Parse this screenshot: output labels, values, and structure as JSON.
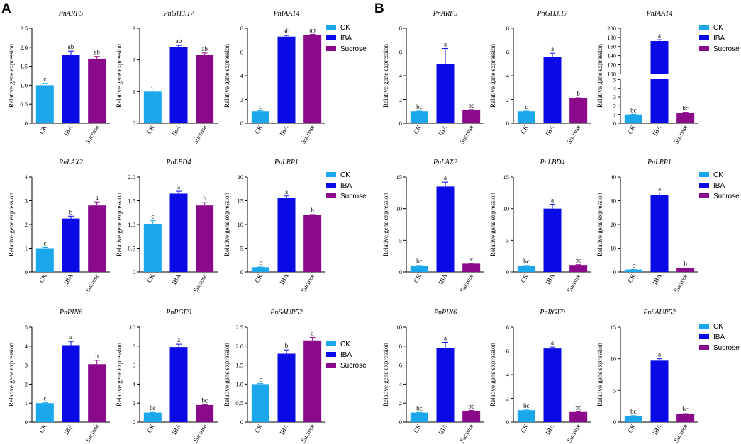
{
  "panels": {
    "a": "A",
    "b": "B"
  },
  "axis_ylabel": "Relative gene expression",
  "categories": [
    "CK",
    "IBA",
    "Sucrose"
  ],
  "colors": {
    "CK": "#1aa7ec",
    "IBA": "#0a0ae6",
    "Sucrose": "#8b0a8b"
  },
  "legend": [
    {
      "label": "CK",
      "color": "#1aa7ec"
    },
    {
      "label": "IBA",
      "color": "#0a0ae6"
    },
    {
      "label": "Sucrose",
      "color": "#8b0a8b"
    }
  ],
  "chart_data": [
    {
      "panel": "A",
      "type": "bar",
      "title": "PnARF5",
      "categories": [
        "CK",
        "IBA",
        "Sucrose"
      ],
      "values": [
        1.0,
        1.8,
        1.7
      ],
      "errors": [
        0.05,
        0.1,
        0.06
      ],
      "letters": [
        "c",
        "ab",
        "ab"
      ],
      "ylim": [
        0,
        2.5
      ],
      "yticks": [
        "0",
        "0.5",
        "1.0",
        "1.5",
        "2.0",
        "2.5"
      ],
      "ylabel": "Relative gene expression"
    },
    {
      "panel": "A",
      "type": "bar",
      "title": "PnGH3.17",
      "categories": [
        "CK",
        "IBA",
        "Sucrose"
      ],
      "values": [
        1.0,
        2.4,
        2.15
      ],
      "errors": [
        0.02,
        0.06,
        0.07
      ],
      "letters": [
        "c",
        "ab",
        "ab"
      ],
      "ylim": [
        0,
        3
      ],
      "yticks": [
        "0",
        "1",
        "2",
        "3"
      ],
      "ylabel": "Relative gene expression"
    },
    {
      "panel": "A",
      "type": "bar",
      "title": "PnIAA14",
      "categories": [
        "CK",
        "IBA",
        "Sucrose"
      ],
      "values": [
        1.0,
        7.3,
        7.45
      ],
      "errors": [
        0.05,
        0.1,
        0.05
      ],
      "letters": [
        "c",
        "ab",
        "ab"
      ],
      "ylim": [
        0,
        8
      ],
      "yticks": [
        "0",
        "2",
        "4",
        "6",
        "8"
      ],
      "ylabel": "Relative gene expression"
    },
    {
      "panel": "A",
      "type": "bar",
      "title": "PnLAX2",
      "categories": [
        "CK",
        "IBA",
        "Sucrose"
      ],
      "values": [
        1.0,
        2.25,
        2.8
      ],
      "errors": [
        0.03,
        0.1,
        0.15
      ],
      "letters": [
        "c",
        "b",
        "a"
      ],
      "ylim": [
        0,
        4
      ],
      "yticks": [
        "0",
        "1",
        "2",
        "3",
        "4"
      ],
      "ylabel": "Relative gene expression"
    },
    {
      "panel": "A",
      "type": "bar",
      "title": "PnLBD4",
      "categories": [
        "CK",
        "IBA",
        "Sucrose"
      ],
      "values": [
        1.0,
        1.65,
        1.4
      ],
      "errors": [
        0.08,
        0.05,
        0.06
      ],
      "letters": [
        "c",
        "a",
        "b"
      ],
      "ylim": [
        0,
        2.0
      ],
      "yticks": [
        "0",
        "0.5",
        "1.0",
        "1.5",
        "2.0"
      ],
      "ylabel": "Relative gene expression"
    },
    {
      "panel": "A",
      "type": "bar",
      "title": "PnLRP1",
      "categories": [
        "CK",
        "IBA",
        "Sucrose"
      ],
      "values": [
        1.0,
        15.6,
        12.0
      ],
      "errors": [
        0.05,
        0.4,
        0.1
      ],
      "letters": [
        "c",
        "a",
        "b"
      ],
      "ylim": [
        0,
        20
      ],
      "yticks": [
        "0",
        "5",
        "10",
        "15",
        "20"
      ],
      "ylabel": "Relative gene expression"
    },
    {
      "panel": "A",
      "type": "bar",
      "title": "PnPIN6",
      "categories": [
        "CK",
        "IBA",
        "Sucrose"
      ],
      "values": [
        1.0,
        4.05,
        3.05
      ],
      "errors": [
        0.02,
        0.2,
        0.2
      ],
      "letters": [
        "c",
        "a",
        "b"
      ],
      "ylim": [
        0,
        5
      ],
      "yticks": [
        "0",
        "1",
        "2",
        "3",
        "4",
        "5"
      ],
      "ylabel": "Relative gene expression"
    },
    {
      "panel": "A",
      "type": "bar",
      "title": "PnRGF9",
      "categories": [
        "CK",
        "IBA",
        "Sucrose"
      ],
      "values": [
        1.0,
        7.9,
        1.8
      ],
      "errors": [
        0.03,
        0.3,
        0.04
      ],
      "letters": [
        "bc",
        "a",
        "bc"
      ],
      "ylim": [
        0,
        10
      ],
      "yticks": [
        "0",
        "2",
        "4",
        "6",
        "8",
        "10"
      ],
      "ylabel": "Relative gene expression"
    },
    {
      "panel": "A",
      "type": "bar",
      "title": "PnSAUR52",
      "categories": [
        "CK",
        "IBA",
        "Sucrose"
      ],
      "values": [
        1.0,
        1.8,
        2.15
      ],
      "errors": [
        0.02,
        0.1,
        0.08
      ],
      "letters": [
        "c",
        "b",
        "a"
      ],
      "ylim": [
        0,
        2.5
      ],
      "yticks": [
        "0",
        "0.5",
        "1.0",
        "1.5",
        "2.0",
        "2.5"
      ],
      "ylabel": "Relative gene expression"
    },
    {
      "panel": "B",
      "type": "bar",
      "title": "PnARF5",
      "categories": [
        "CK",
        "IBA",
        "Sucrose"
      ],
      "values": [
        1.0,
        5.0,
        1.1
      ],
      "errors": [
        0.02,
        1.3,
        0.04
      ],
      "letters": [
        "bc",
        "a",
        "bc"
      ],
      "ylim": [
        0,
        8
      ],
      "yticks": [
        "0",
        "2",
        "4",
        "6",
        "8"
      ],
      "ylabel": "Relative gene expression"
    },
    {
      "panel": "B",
      "type": "bar",
      "title": "PnGH3.17",
      "categories": [
        "CK",
        "IBA",
        "Sucrose"
      ],
      "values": [
        1.0,
        5.6,
        2.1
      ],
      "errors": [
        0.02,
        0.3,
        0.05
      ],
      "letters": [
        "c",
        "a",
        "b"
      ],
      "ylim": [
        0,
        8
      ],
      "yticks": [
        "0",
        "2",
        "4",
        "6",
        "8"
      ],
      "ylabel": "Relative gene expression"
    },
    {
      "panel": "B",
      "type": "bar",
      "title": "PnIAA14",
      "categories": [
        "CK",
        "IBA",
        "Sucrose"
      ],
      "values": [
        1.0,
        172,
        1.2
      ],
      "errors": [
        0.02,
        3,
        0.05
      ],
      "letters": [
        "bc",
        "a",
        "bc"
      ],
      "ylim": [
        0,
        200
      ],
      "yticks": [
        "0",
        "1",
        "2",
        "3",
        "4",
        "5",
        "100",
        "120",
        "140",
        "160",
        "180",
        "200"
      ],
      "axis_break": [
        5,
        100
      ],
      "ylabel": "Relative gene expression"
    },
    {
      "panel": "B",
      "type": "bar",
      "title": "PnLAX2",
      "categories": [
        "CK",
        "IBA",
        "Sucrose"
      ],
      "values": [
        1.0,
        13.5,
        1.3
      ],
      "errors": [
        0.02,
        0.7,
        0.06
      ],
      "letters": [
        "bc",
        "a",
        "bc"
      ],
      "ylim": [
        0,
        15
      ],
      "yticks": [
        "0",
        "5",
        "10",
        "15"
      ],
      "ylabel": "Relative gene expression"
    },
    {
      "panel": "B",
      "type": "bar",
      "title": "PnLBD4",
      "categories": [
        "CK",
        "IBA",
        "Sucrose"
      ],
      "values": [
        1.0,
        10.0,
        1.1
      ],
      "errors": [
        0.02,
        0.7,
        0.05
      ],
      "letters": [
        "bc",
        "a",
        "bc"
      ],
      "ylim": [
        0,
        15
      ],
      "yticks": [
        "0",
        "5",
        "10",
        "15"
      ],
      "ylabel": "Relative gene expression"
    },
    {
      "panel": "B",
      "type": "bar",
      "title": "PnLRP1",
      "categories": [
        "CK",
        "IBA",
        "Sucrose"
      ],
      "values": [
        1.0,
        32.5,
        1.6
      ],
      "errors": [
        0.02,
        0.8,
        0.05
      ],
      "letters": [
        "c",
        "a",
        "b"
      ],
      "ylim": [
        0,
        40
      ],
      "yticks": [
        "0",
        "10",
        "20",
        "30",
        "40"
      ],
      "ylabel": "Relative gene expression"
    },
    {
      "panel": "B",
      "type": "bar",
      "title": "PnPIN6",
      "categories": [
        "CK",
        "IBA",
        "Sucrose"
      ],
      "values": [
        1.0,
        7.8,
        1.2
      ],
      "errors": [
        0.02,
        0.6,
        0.04
      ],
      "letters": [
        "bc",
        "a",
        "bc"
      ],
      "ylim": [
        0,
        10
      ],
      "yticks": [
        "0",
        "2",
        "4",
        "6",
        "8",
        "10"
      ],
      "ylabel": "Relative gene expression"
    },
    {
      "panel": "B",
      "type": "bar",
      "title": "PnRGF9",
      "categories": [
        "CK",
        "IBA",
        "Sucrose"
      ],
      "values": [
        1.0,
        6.2,
        0.85
      ],
      "errors": [
        0.02,
        0.12,
        0.03
      ],
      "letters": [
        "bc",
        "a",
        "bc"
      ],
      "ylim": [
        0,
        8
      ],
      "yticks": [
        "0",
        "2",
        "4",
        "6",
        "8"
      ],
      "ylabel": "Relative gene expression"
    },
    {
      "panel": "B",
      "type": "bar",
      "title": "PnSAUR52",
      "categories": [
        "CK",
        "IBA",
        "Sucrose"
      ],
      "values": [
        1.0,
        9.7,
        1.3
      ],
      "errors": [
        0.02,
        0.3,
        0.04
      ],
      "letters": [
        "bc",
        "a",
        "bc"
      ],
      "ylim": [
        0,
        15
      ],
      "yticks": [
        "0",
        "5",
        "10",
        "15"
      ],
      "ylabel": "Relative gene expression"
    }
  ]
}
